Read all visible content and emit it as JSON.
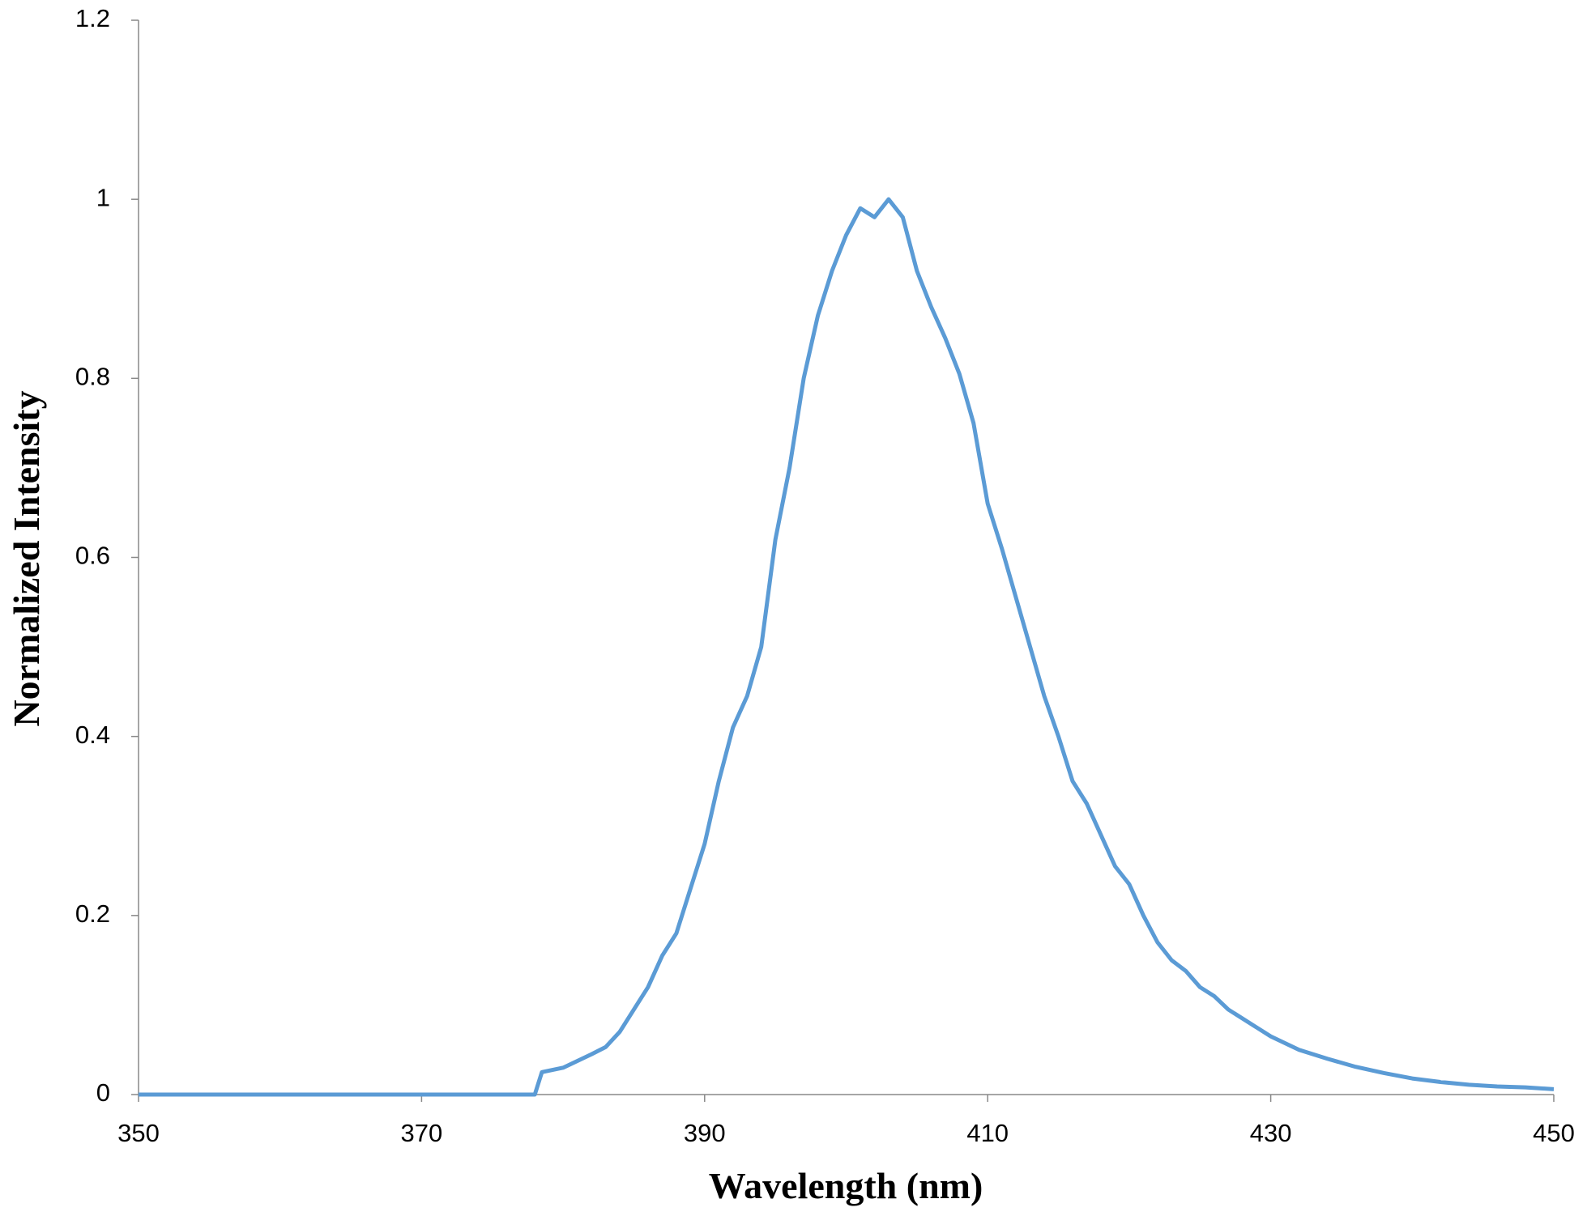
{
  "chart_data": {
    "type": "line",
    "x_label": "Wavelength (nm)",
    "y_label": "Normalized Intensity",
    "x": [
      350,
      378,
      378.5,
      380,
      382,
      383,
      384,
      385,
      386,
      387,
      388,
      389,
      390,
      391,
      392,
      393,
      394,
      395,
      396,
      397,
      398,
      399,
      400,
      401,
      402,
      403,
      404,
      405,
      406,
      407,
      408,
      409,
      410,
      411,
      412,
      413,
      414,
      415,
      416,
      417,
      418,
      419,
      420,
      421,
      422,
      423,
      424,
      425,
      426,
      427,
      428,
      429,
      430,
      432,
      434,
      436,
      438,
      440,
      442,
      444,
      446,
      448,
      450
    ],
    "series": [
      {
        "name": "Normalized Intensity",
        "color": "#5b9bd5",
        "values": [
          0,
          0,
          0.025,
          0.03,
          0.045,
          0.053,
          0.07,
          0.095,
          0.12,
          0.155,
          0.18,
          0.23,
          0.28,
          0.35,
          0.41,
          0.445,
          0.5,
          0.62,
          0.7,
          0.8,
          0.87,
          0.92,
          0.96,
          0.99,
          0.98,
          1.0,
          0.98,
          0.92,
          0.88,
          0.845,
          0.805,
          0.75,
          0.66,
          0.61,
          0.555,
          0.5,
          0.445,
          0.4,
          0.35,
          0.325,
          0.29,
          0.255,
          0.235,
          0.2,
          0.17,
          0.15,
          0.138,
          0.12,
          0.11,
          0.095,
          0.085,
          0.075,
          0.065,
          0.05,
          0.04,
          0.031,
          0.024,
          0.018,
          0.014,
          0.011,
          0.009,
          0.008,
          0.006
        ]
      }
    ],
    "xlim": [
      350,
      450
    ],
    "xticks": [
      350,
      370,
      390,
      410,
      430,
      450
    ],
    "ylim": [
      0,
      1.2
    ],
    "yticks": [
      0,
      0.2,
      0.4,
      0.6,
      0.8,
      1,
      1.2
    ],
    "grid": false
  }
}
